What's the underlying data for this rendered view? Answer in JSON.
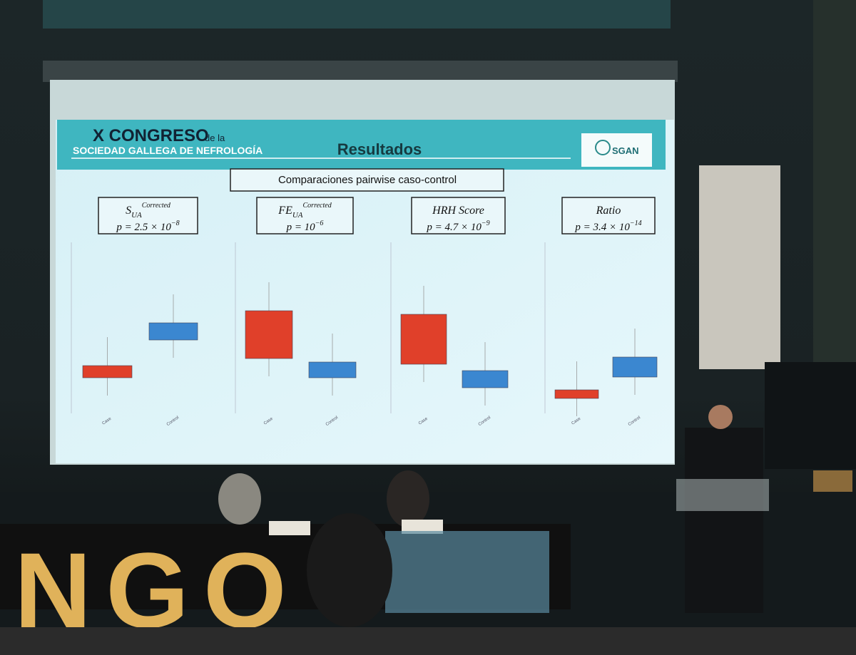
{
  "slide": {
    "header": {
      "title": "X CONGRESO",
      "title_suffix": "de la",
      "subtitle": "SOCIEDAD GALLEGA DE NEFROLOGÍA",
      "heading": "Resultados",
      "logo": "SGAN"
    },
    "banner": "Comparaciones pairwise caso-control",
    "panels": [
      {
        "label": {
          "base": "S",
          "sub": "UA",
          "sup": "Corrected"
        },
        "p": {
          "text": "p = 2.5 × 10",
          "exp": "−8"
        },
        "categories": [
          "Case",
          "Control"
        ]
      },
      {
        "label": {
          "base": "FE",
          "sub": "UA",
          "sup": "Corrected"
        },
        "p": {
          "text": "p = 10",
          "exp": "−6"
        },
        "categories": [
          "Case",
          "Control"
        ]
      },
      {
        "label": {
          "base": "HRH Score"
        },
        "p": {
          "text": "p = 4.7 × 10",
          "exp": "−9"
        },
        "categories": [
          "Case",
          "Control"
        ]
      },
      {
        "label": {
          "base": "Ratio"
        },
        "p": {
          "text": "p = 3.4 × 10",
          "exp": "−14"
        },
        "categories": [
          "Case",
          "Control"
        ]
      }
    ]
  },
  "stage": {
    "letters": "NGO"
  }
}
